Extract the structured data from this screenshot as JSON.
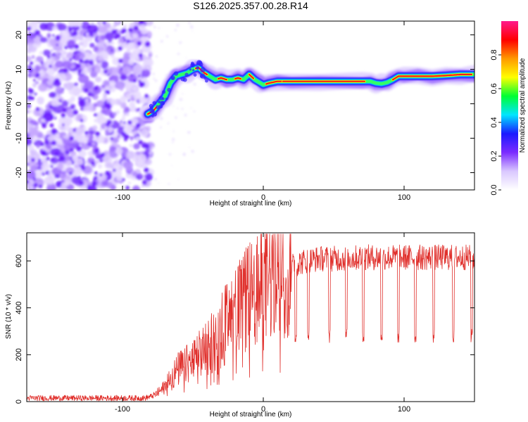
{
  "title": "S126.2025.357.00.28.R14",
  "chart_data": [
    {
      "type": "heatmap",
      "name": "spectrogram",
      "xlabel": "Height of straight line (km)",
      "ylabel": "Frequency (Hz)",
      "xlim": [
        -168,
        150
      ],
      "ylim": [
        -25,
        24
      ],
      "xticks": [
        -100,
        0,
        100
      ],
      "yticks": [
        -20,
        -10,
        0,
        10,
        20
      ],
      "noise_region_x": [
        -168,
        -82
      ],
      "ridge": {
        "x": [
          -82,
          -78,
          -74,
          -70,
          -66,
          -62,
          -58,
          -54,
          -50,
          -46,
          -42,
          -38,
          -34,
          -30,
          -26,
          -22,
          -18,
          -14,
          -10,
          -6,
          -2,
          0,
          4,
          10,
          20,
          40,
          60,
          70,
          76,
          80,
          84,
          88,
          92,
          96,
          100,
          110,
          120,
          130,
          140,
          150
        ],
        "y": [
          -3,
          -2,
          0,
          2,
          6,
          8,
          8.5,
          9,
          10,
          10.5,
          9,
          8,
          7,
          7.5,
          7,
          7,
          7.5,
          7,
          8.5,
          7,
          6,
          5.5,
          6,
          6.5,
          6.5,
          6.5,
          6.5,
          6.5,
          6.5,
          6,
          5.8,
          6.2,
          7,
          8,
          8,
          8,
          8,
          8.2,
          8.5,
          8.5
        ]
      },
      "colorbar": {
        "label": "Normalized spectral amplitude",
        "ticks": [
          "0.0",
          "0.2",
          "0.4",
          "0.6",
          "0.8"
        ],
        "colors": [
          "#ffffff",
          "#d9c7ff",
          "#7b2bff",
          "#1a1aff",
          "#00e5ff",
          "#00ff33",
          "#ffff00",
          "#ff9900",
          "#ff0000",
          "#ff1a8c"
        ]
      }
    },
    {
      "type": "line",
      "name": "snr",
      "xlabel": "Height of straight line (km)",
      "ylabel": "SNR (10 * v/v)",
      "xlim": [
        -168,
        150
      ],
      "ylim": [
        0,
        720
      ],
      "xticks": [
        -100,
        0,
        100
      ],
      "yticks": [
        0,
        200,
        400,
        600
      ],
      "color": "#e0302c",
      "envelope_x": [
        -168,
        -84,
        -78,
        -72,
        -66,
        -60,
        -54,
        -48,
        -42,
        -36,
        -30,
        -24,
        -18,
        -12,
        -6,
        0,
        6,
        12,
        18,
        24,
        30,
        40,
        50,
        60,
        70,
        80,
        90,
        100,
        110,
        120,
        130,
        140,
        150
      ],
      "envelope_y": [
        15,
        15,
        25,
        50,
        100,
        140,
        160,
        180,
        220,
        260,
        310,
        340,
        390,
        430,
        460,
        500,
        530,
        550,
        570,
        590,
        600,
        610,
        610,
        610,
        615,
        615,
        615,
        615,
        615,
        615,
        615,
        615,
        615
      ],
      "dropout_x": [
        23,
        32,
        47,
        59,
        71,
        84,
        96,
        108,
        121,
        135,
        148
      ],
      "dropout_y": 280
    }
  ]
}
